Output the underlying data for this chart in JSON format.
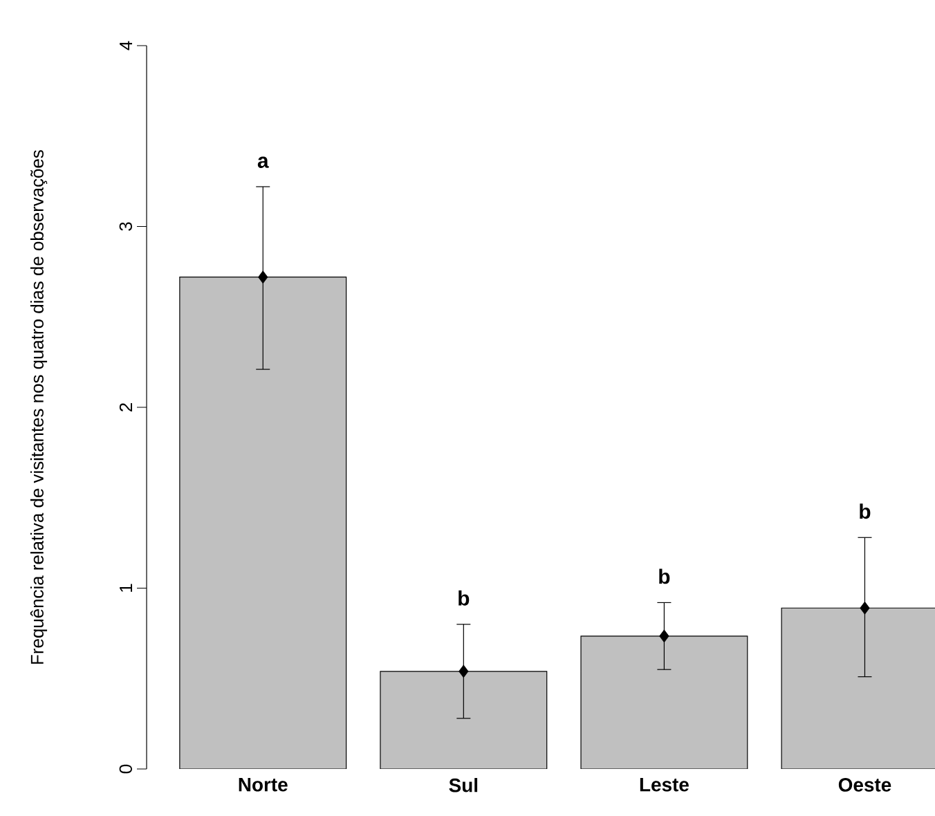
{
  "chart_data": {
    "type": "bar",
    "ylabel": "Frequência relativa de visitantes nos quatro dias de observações",
    "categories": [
      "Norte",
      "Sul",
      "Leste",
      "Oeste"
    ],
    "series": [
      {
        "color": "#c0c0c0",
        "values": [
          2.72,
          0.54,
          0.735,
          0.89
        ]
      },
      {
        "type": "scatter",
        "color": "#000000",
        "marker": "diamond",
        "values": [
          2.72,
          0.54,
          0.735,
          0.89
        ],
        "errors": [
          [
            2.21,
            3.22
          ],
          [
            0.28,
            0.8
          ],
          [
            0.55,
            0.92
          ],
          [
            0.51,
            1.28
          ]
        ]
      }
    ],
    "ylim": [
      0,
      4
    ],
    "yticks": [
      0,
      1,
      2,
      3,
      4
    ],
    "annotations": [
      "a",
      "b",
      "b",
      "b"
    ]
  }
}
